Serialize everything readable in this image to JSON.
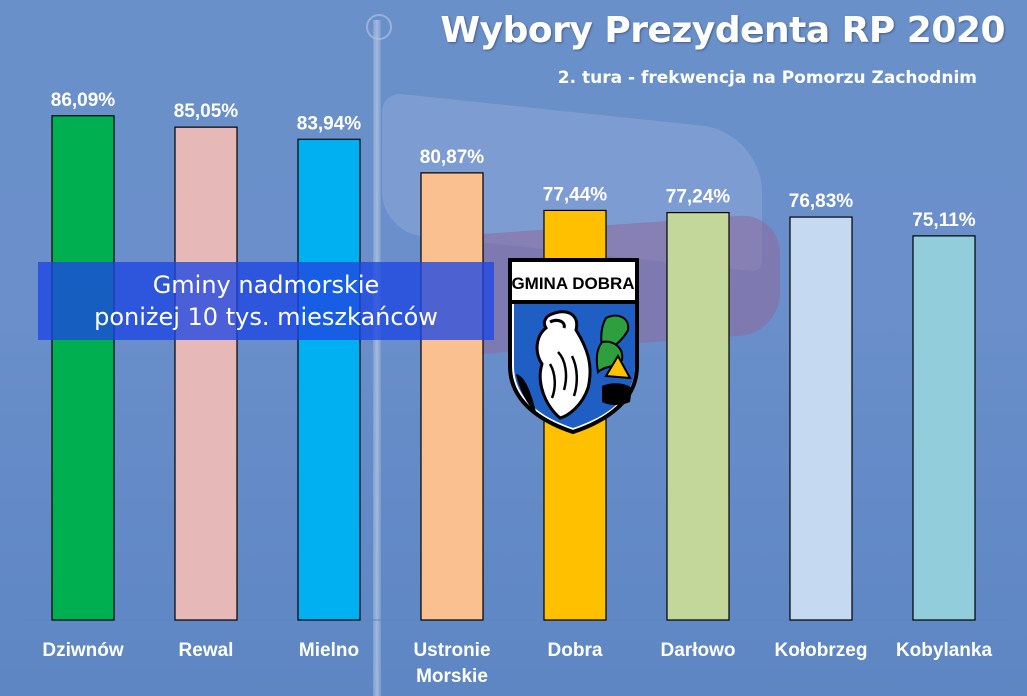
{
  "title": "Wybory Prezydenta RP 2020",
  "subtitle": "2. tura - frekwencja na Pomorzu Zachodnim",
  "note": {
    "line1": "Gminy nadmorskie",
    "line2": "poniżej 10 tys. mieszkańców"
  },
  "emblem": {
    "label": "GMINA DOBRA",
    "icon": "eagle-coat-of-arms-icon"
  },
  "chart_data": {
    "type": "bar",
    "categories": [
      "Dziwnów",
      "Rewal",
      "Mielno",
      [
        "Ustronie",
        "Morskie"
      ],
      "Dobra",
      "Darłowo",
      "Kołobrzeg",
      "Kobylanka"
    ],
    "values": [
      86.09,
      85.05,
      83.94,
      80.87,
      77.44,
      77.24,
      76.83,
      75.11
    ],
    "value_labels": [
      "86,09%",
      "85,05%",
      "83,94%",
      "80,87%",
      "77,44%",
      "77,24%",
      "76,83%",
      "75,11%"
    ],
    "colors": [
      "#00b050",
      "#e6b8b7",
      "#00b0f0",
      "#fac090",
      "#ffc000",
      "#c4d79b",
      "#c5d9f1",
      "#92cddc"
    ],
    "unit": "%",
    "ylim": [
      40,
      90
    ],
    "grid": false,
    "legend": "none"
  }
}
